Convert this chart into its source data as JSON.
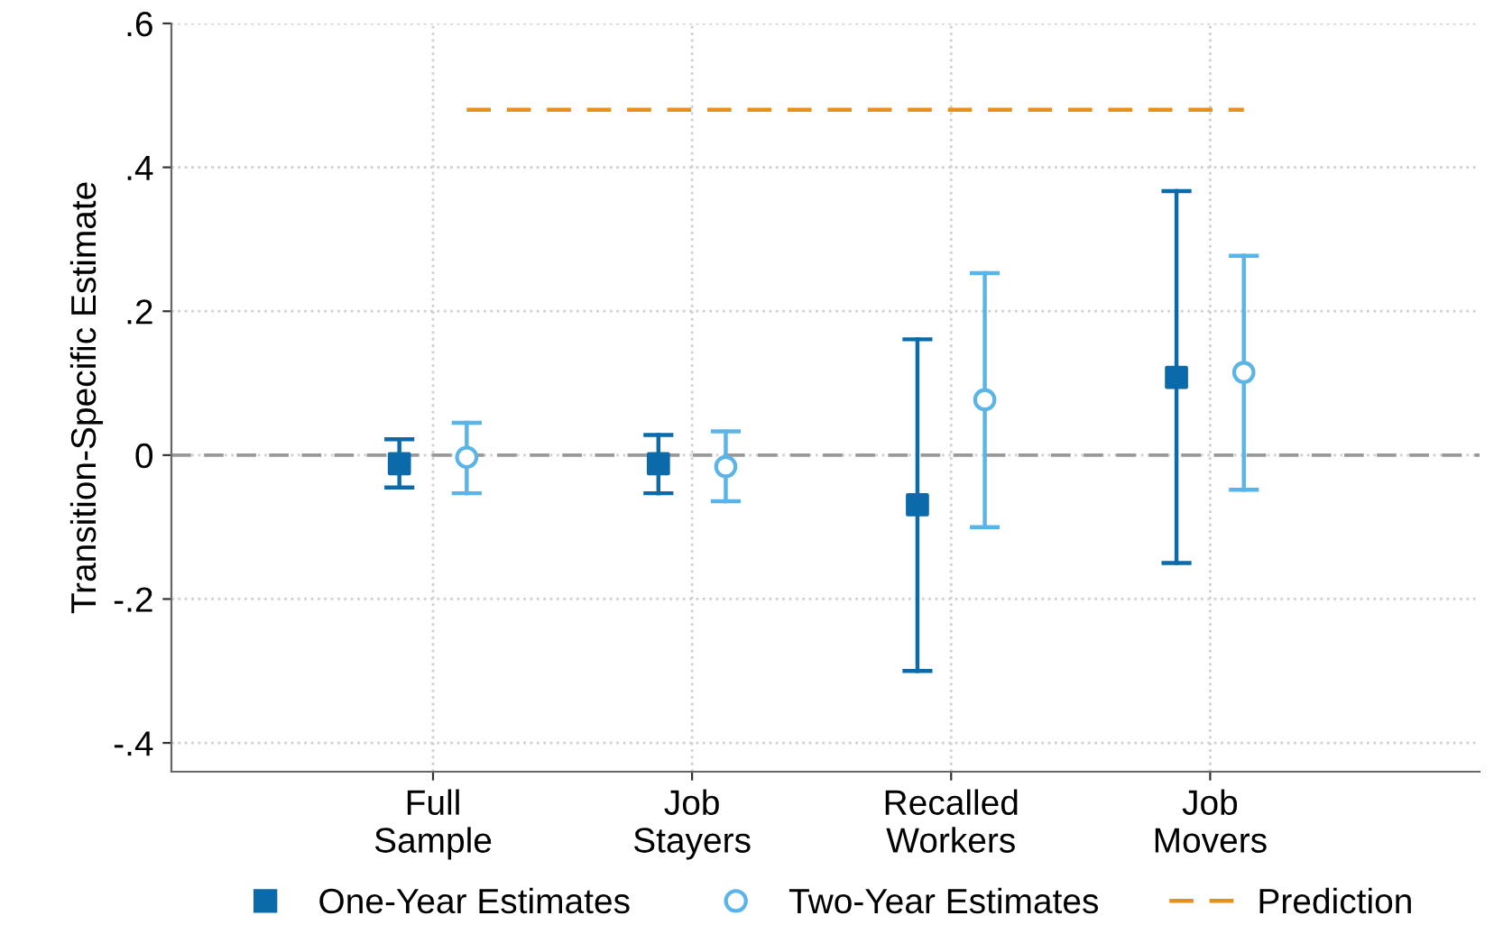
{
  "chart_data": {
    "type": "scatter",
    "ylabel": "Transition-Specific Estimate",
    "categories": [
      "Full\nSample",
      "Job\nStayers",
      "Recalled\nWorkers",
      "Job\nMovers"
    ],
    "series": [
      {
        "name": "One-Year Estimates",
        "color": "#0b6aa9",
        "marker": "square",
        "values": [
          -0.012,
          -0.012,
          -0.069,
          0.108
        ],
        "errors": [
          [
            -0.045,
            0.022
          ],
          [
            -0.053,
            0.028
          ],
          [
            -0.3,
            0.161
          ],
          [
            -0.15,
            0.367
          ]
        ]
      },
      {
        "name": "Two-Year Estimates",
        "color": "#5ab4e8",
        "marker": "circle",
        "values": [
          -0.003,
          -0.016,
          0.077,
          0.115
        ],
        "errors": [
          [
            -0.053,
            0.045
          ],
          [
            -0.064,
            0.033
          ],
          [
            -0.1,
            0.253
          ],
          [
            -0.048,
            0.277
          ]
        ]
      },
      {
        "name": "Prediction",
        "type": "line",
        "color": "#e8901c",
        "marker": "none",
        "line_style": "dashed",
        "values": [
          0.48,
          0.48,
          0.48,
          0.48
        ]
      }
    ],
    "ylim": [
      -0.44,
      0.6
    ],
    "yticks": [
      {
        "value": -0.4,
        "label": "-.4"
      },
      {
        "value": -0.2,
        "label": "-.2"
      },
      0,
      {
        "value": 0.2,
        "label": ".2"
      },
      {
        "value": 0.4,
        "label": ".4"
      },
      {
        "value": 0.6,
        "label": ".6"
      }
    ],
    "ref_lines": [
      {
        "axis": "y",
        "value": 0,
        "color": "#999999",
        "line_style": "dashed"
      }
    ],
    "grid": true,
    "legend": "bottom"
  }
}
